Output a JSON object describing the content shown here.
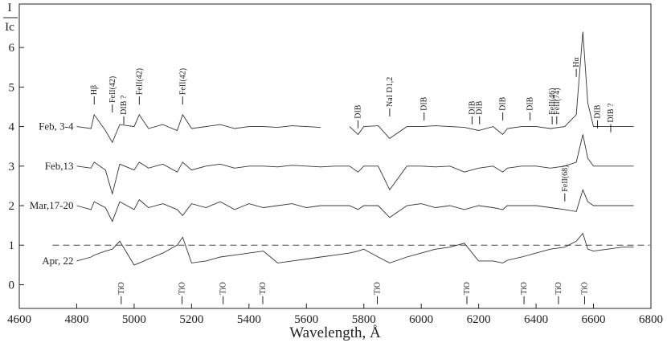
{
  "chart_data": {
    "type": "line",
    "ylabel_numerator": "I",
    "ylabel_denominator": "Ic",
    "xlabel": "Wavelength, Å",
    "x": [
      4800,
      4850,
      4861,
      4900,
      4924,
      4950,
      5000,
      5018,
      5050,
      5100,
      5150,
      5169,
      5200,
      5250,
      5300,
      5350,
      5400,
      5450,
      5500,
      5550,
      5600,
      5650,
      5700,
      5750,
      5780,
      5800,
      5850,
      5890,
      5950,
      6000,
      6050,
      6100,
      6150,
      6200,
      6250,
      6284,
      6300,
      6350,
      6400,
      6450,
      6500,
      6540,
      6563,
      6580,
      6600,
      6650,
      6700,
      6740
    ],
    "series": [
      {
        "name": "Feb, 3-4",
        "color": "#333333",
        "values": [
          4.0,
          3.95,
          4.3,
          3.9,
          3.6,
          4.05,
          4.0,
          4.3,
          3.95,
          4.05,
          3.9,
          4.3,
          3.95,
          4.0,
          4.05,
          3.95,
          4.0,
          4.0,
          3.98,
          4.02,
          4.0,
          3.98,
          null,
          4.0,
          3.8,
          4.0,
          4.02,
          3.7,
          4.0,
          4.0,
          4.02,
          4.0,
          3.98,
          3.9,
          4.0,
          3.8,
          3.95,
          4.0,
          4.0,
          3.95,
          4.0,
          4.3,
          6.4,
          4.6,
          4.0,
          4.0,
          4.0,
          4.0
        ]
      },
      {
        "name": "Feb,13",
        "color": "#333333",
        "values": [
          3.0,
          2.95,
          3.1,
          2.9,
          2.3,
          3.05,
          2.9,
          3.1,
          2.95,
          3.05,
          2.85,
          3.1,
          2.9,
          3.0,
          3.05,
          2.95,
          3.0,
          3.0,
          2.98,
          3.02,
          3.0,
          2.98,
          3.0,
          3.0,
          2.85,
          3.0,
          3.0,
          2.4,
          3.0,
          3.0,
          2.98,
          3.0,
          2.85,
          2.95,
          3.0,
          2.85,
          2.95,
          3.0,
          3.0,
          2.95,
          3.0,
          3.1,
          3.8,
          3.2,
          3.0,
          3.0,
          3.0,
          3.0
        ]
      },
      {
        "name": "Mar,17-20",
        "color": "#333333",
        "values": [
          2.0,
          1.9,
          2.1,
          1.95,
          1.6,
          2.1,
          1.9,
          2.15,
          1.95,
          2.05,
          1.9,
          1.75,
          2.05,
          1.95,
          2.1,
          1.9,
          2.05,
          1.95,
          2.0,
          2.05,
          1.95,
          2.0,
          2.0,
          2.0,
          1.9,
          2.0,
          2.0,
          1.7,
          2.0,
          2.05,
          1.95,
          2.0,
          1.9,
          2.0,
          1.95,
          1.9,
          2.0,
          2.0,
          2.0,
          1.95,
          1.9,
          1.85,
          2.4,
          2.1,
          2.0,
          2.0,
          2.0,
          2.0
        ]
      },
      {
        "name": "Apr, 22",
        "color": "#333333",
        "values": [
          0.6,
          0.7,
          0.75,
          0.85,
          0.9,
          1.1,
          0.5,
          0.55,
          0.65,
          0.8,
          1.0,
          1.2,
          0.55,
          0.6,
          0.7,
          0.75,
          0.8,
          0.85,
          0.55,
          0.6,
          0.65,
          0.7,
          0.75,
          0.8,
          0.85,
          0.9,
          0.7,
          0.55,
          0.7,
          0.8,
          0.9,
          0.95,
          1.05,
          0.6,
          0.6,
          0.55,
          0.62,
          0.7,
          0.8,
          0.9,
          0.95,
          1.1,
          1.3,
          0.9,
          0.85,
          0.9,
          0.95,
          0.95
        ]
      }
    ],
    "reference_line": 1,
    "annotations": [
      {
        "text": "Hβ",
        "x": 4861,
        "y": 4.8
      },
      {
        "text": "FeII(42)",
        "x": 4924,
        "y": 4.6
      },
      {
        "text": "DIB ?",
        "x": 4964,
        "y": 4.3
      },
      {
        "text": "FeII(42)",
        "x": 5018,
        "y": 4.8
      },
      {
        "text": "FeII(42)",
        "x": 5169,
        "y": 4.8
      },
      {
        "text": "DIB",
        "x": 5780,
        "y": 4.2
      },
      {
        "text": "NaI D1,2",
        "x": 5890,
        "y": 4.5
      },
      {
        "text": "DIB",
        "x": 6010,
        "y": 4.4
      },
      {
        "text": "DIB",
        "x": 6177,
        "y": 4.3
      },
      {
        "text": "DIB",
        "x": 6203,
        "y": 4.3
      },
      {
        "text": "DIB",
        "x": 6284,
        "y": 4.4
      },
      {
        "text": "DIB",
        "x": 6379,
        "y": 4.4
      },
      {
        "text": "FeII(46)",
        "x": 6456,
        "y": 4.3
      },
      {
        "text": "FeII(74)",
        "x": 6472,
        "y": 4.3
      },
      {
        "text": "Hα",
        "x": 6540,
        "y": 5.5
      },
      {
        "text": "DIB",
        "x": 6614,
        "y": 4.2
      },
      {
        "text": "DIB ?",
        "x": 6660,
        "y": 4.1
      },
      {
        "text": "FeII(68)",
        "x": 6500,
        "y": 2.35
      },
      {
        "text": "TiO",
        "x": 4955,
        "y": -0.25
      },
      {
        "text": "TiO",
        "x": 5167,
        "y": -0.25
      },
      {
        "text": "TiO",
        "x": 5310,
        "y": -0.25
      },
      {
        "text": "TiO",
        "x": 5448,
        "y": -0.25
      },
      {
        "text": "TiO",
        "x": 5847,
        "y": -0.25
      },
      {
        "text": "TiO",
        "x": 6159,
        "y": -0.25
      },
      {
        "text": "TiO",
        "x": 6358,
        "y": -0.25
      },
      {
        "text": "TiO",
        "x": 6478,
        "y": -0.25
      },
      {
        "text": "TiO",
        "x": 6569,
        "y": -0.25
      }
    ],
    "xlim": [
      4600,
      6800
    ],
    "xticks": [
      4600,
      4800,
      5000,
      5200,
      5400,
      5600,
      5800,
      6000,
      6200,
      6400,
      6600,
      6800
    ],
    "ylim": [
      -0.6,
      7.1
    ],
    "yticks": [
      0,
      1,
      2,
      3,
      4,
      5,
      6
    ]
  }
}
